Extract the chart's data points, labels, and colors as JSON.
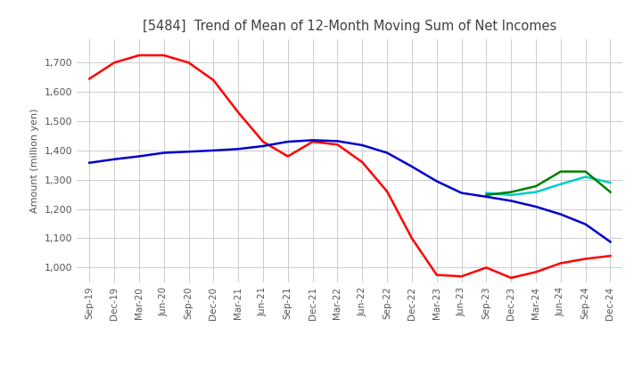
{
  "title": "[5484]  Trend of Mean of 12-Month Moving Sum of Net Incomes",
  "ylabel": "Amount (million yen)",
  "background_color": "#ffffff",
  "grid_color": "#cccccc",
  "title_color": "#404040",
  "x_labels": [
    "Sep-19",
    "Dec-19",
    "Mar-20",
    "Jun-20",
    "Sep-20",
    "Dec-20",
    "Mar-21",
    "Jun-21",
    "Sep-21",
    "Dec-21",
    "Mar-22",
    "Jun-22",
    "Sep-22",
    "Dec-22",
    "Mar-23",
    "Jun-23",
    "Sep-23",
    "Dec-23",
    "Mar-24",
    "Jun-24",
    "Sep-24",
    "Dec-24"
  ],
  "ylim": [
    950,
    1780
  ],
  "yticks": [
    1000,
    1100,
    1200,
    1300,
    1400,
    1500,
    1600,
    1700
  ],
  "line_3y": [
    1645,
    1700,
    1725,
    1725,
    1700,
    1640,
    1530,
    1430,
    1380,
    1430,
    1420,
    1360,
    1260,
    1100,
    975,
    970,
    1000,
    965,
    985,
    1015,
    1030,
    1040
  ],
  "line_5y": [
    1358,
    1370,
    1380,
    1392,
    1396,
    1400,
    1405,
    1415,
    1430,
    1435,
    1432,
    1418,
    1392,
    1345,
    1295,
    1255,
    1242,
    1228,
    1208,
    1182,
    1148,
    1088
  ],
  "line_7y": [
    null,
    null,
    null,
    null,
    null,
    null,
    null,
    null,
    null,
    null,
    null,
    null,
    null,
    null,
    null,
    null,
    1255,
    1248,
    1258,
    1285,
    1310,
    1290
  ],
  "line_10y": [
    null,
    null,
    null,
    null,
    null,
    null,
    null,
    null,
    null,
    null,
    null,
    null,
    null,
    null,
    null,
    null,
    1248,
    1258,
    1278,
    1328,
    1328,
    1258
  ],
  "color_3y": "#ff0000",
  "color_5y": "#0000cc",
  "color_7y": "#00cccc",
  "color_10y": "#008000",
  "figsize": [
    7.2,
    4.4
  ],
  "dpi": 100
}
